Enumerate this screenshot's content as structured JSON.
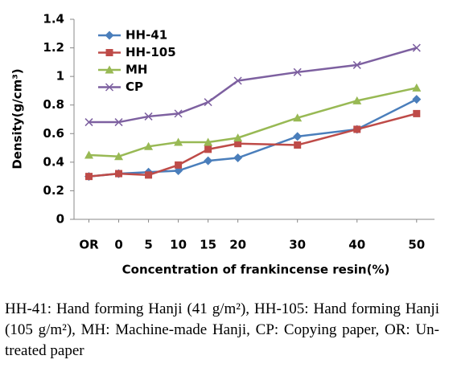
{
  "chart_data": {
    "type": "line",
    "x": [
      -5,
      0,
      5,
      10,
      15,
      20,
      30,
      40,
      50
    ],
    "xlim": [
      -7.5,
      53
    ],
    "xticks": [
      {
        "value": -5,
        "label": "OR"
      },
      0,
      5,
      10,
      15,
      20,
      30,
      40,
      50
    ],
    "xlabel": "Concentration of frankincense resin(%)",
    "ylabel": "Density(g/cm³)",
    "ylim": [
      0,
      1.4
    ],
    "yticks": [
      0,
      0.2,
      0.4,
      0.6,
      0.8,
      1,
      1.2,
      1.4
    ],
    "grid": false,
    "legend": "upper left",
    "series": [
      {
        "name": "HH-41",
        "color": "#4a7ebb",
        "marker": "diamond",
        "values": [
          0.3,
          0.32,
          0.33,
          0.34,
          0.41,
          0.43,
          0.58,
          0.63,
          0.84
        ]
      },
      {
        "name": "HH-105",
        "color": "#be4b48",
        "marker": "square",
        "values": [
          0.3,
          0.32,
          0.31,
          0.38,
          0.49,
          0.53,
          0.52,
          0.63,
          0.74
        ]
      },
      {
        "name": "MH",
        "color": "#98b954",
        "marker": "triangle",
        "values": [
          0.45,
          0.44,
          0.51,
          0.54,
          0.54,
          0.57,
          0.71,
          0.83,
          0.92
        ]
      },
      {
        "name": "CP",
        "color": "#7d60a0",
        "marker": "cross",
        "values": [
          0.68,
          0.68,
          0.72,
          0.74,
          0.82,
          0.97,
          1.03,
          1.08,
          1.2
        ]
      }
    ]
  },
  "caption": "HH-41: Hand forming Hanji (41 g/m²), HH-105: Hand forming Hanji (105 g/m²), MH: Machine-made Hanji, CP: Copying paper, OR: Un-treated paper"
}
